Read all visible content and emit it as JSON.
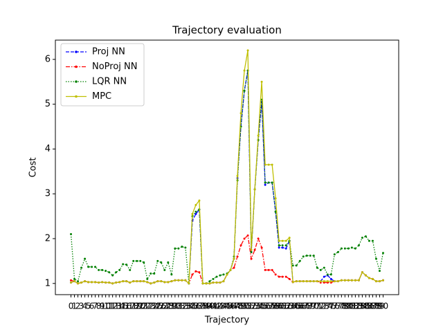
{
  "chart_data": {
    "type": "line",
    "title": "Trajectory evaluation",
    "xlabel": "Trajectory",
    "ylabel": "Cost",
    "x": [
      0,
      1,
      2,
      3,
      4,
      5,
      6,
      7,
      8,
      9,
      10,
      11,
      12,
      13,
      14,
      15,
      16,
      17,
      18,
      19,
      20,
      21,
      22,
      23,
      24,
      25,
      26,
      27,
      28,
      29,
      30,
      31,
      32,
      33,
      34,
      35,
      36,
      37,
      38,
      39,
      40,
      41,
      42,
      43,
      44,
      45,
      46,
      47,
      48,
      49,
      50,
      51,
      52,
      53,
      54,
      55,
      56,
      57,
      58,
      59,
      60,
      61,
      62,
      63,
      64,
      65,
      66,
      67,
      68,
      69,
      70,
      71,
      72,
      73,
      74,
      75,
      76,
      77,
      78,
      79,
      80,
      81,
      82,
      83,
      84,
      85,
      86,
      87,
      88,
      89,
      90
    ],
    "xlim": [
      -4.5,
      94.5
    ],
    "ylim": [
      0.75,
      6.43
    ],
    "xticks": [
      0,
      1,
      2,
      3,
      4,
      5,
      6,
      7,
      8,
      9,
      10,
      11,
      12,
      13,
      14,
      15,
      16,
      17,
      18,
      19,
      20,
      21,
      22,
      23,
      24,
      25,
      26,
      27,
      28,
      29,
      30,
      31,
      32,
      33,
      34,
      35,
      36,
      37,
      38,
      39,
      40,
      41,
      42,
      43,
      44,
      45,
      46,
      47,
      48,
      49,
      50,
      51,
      52,
      53,
      54,
      55,
      56,
      57,
      58,
      59,
      60,
      61,
      62,
      63,
      64,
      65,
      66,
      67,
      68,
      69,
      70,
      71,
      72,
      73,
      74,
      75,
      76,
      77,
      78,
      79,
      80,
      81,
      82,
      83,
      84,
      85,
      86,
      87,
      88,
      89,
      90
    ],
    "yticks": [
      1,
      2,
      3,
      4,
      5,
      6
    ],
    "legend": "upper left",
    "series": [
      {
        "name": "Proj NN",
        "color": "#0000ff",
        "linestyle": "dashed",
        "values": [
          1.02,
          1.05,
          1.0,
          1.02,
          1.05,
          1.03,
          1.03,
          1.03,
          1.02,
          1.03,
          1.02,
          1.02,
          1.0,
          1.02,
          1.03,
          1.05,
          1.05,
          1.02,
          1.05,
          1.05,
          1.05,
          1.05,
          1.03,
          1.0,
          1.02,
          1.05,
          1.05,
          1.03,
          1.03,
          1.05,
          1.07,
          1.07,
          1.07,
          1.07,
          1.0,
          2.4,
          2.55,
          2.65,
          1.0,
          1.0,
          1.0,
          1.02,
          1.02,
          1.02,
          1.05,
          1.2,
          1.3,
          1.55,
          3.35,
          4.5,
          5.3,
          5.75,
          1.7,
          3.1,
          4.2,
          5.05,
          3.2,
          3.25,
          3.25,
          2.6,
          1.8,
          1.8,
          1.78,
          1.95,
          1.03,
          1.05,
          1.05,
          1.05,
          1.05,
          1.05,
          1.05,
          1.05,
          1.05,
          1.15,
          1.18,
          1.1,
          1.05,
          1.05,
          1.07,
          1.07,
          1.07,
          1.07,
          1.07,
          1.07,
          1.25,
          1.18,
          1.12,
          1.1,
          1.05,
          1.05,
          1.07
        ]
      },
      {
        "name": "NoProj NN",
        "color": "#ff0000",
        "linestyle": "dashdot",
        "values": [
          1.07,
          1.05,
          1.0,
          1.02,
          1.05,
          1.03,
          1.03,
          1.03,
          1.02,
          1.03,
          1.02,
          1.02,
          1.0,
          1.02,
          1.03,
          1.05,
          1.05,
          1.02,
          1.05,
          1.05,
          1.05,
          1.05,
          1.03,
          1.0,
          1.02,
          1.05,
          1.05,
          1.03,
          1.03,
          1.05,
          1.07,
          1.07,
          1.07,
          1.07,
          1.0,
          1.2,
          1.27,
          1.25,
          1.0,
          1.0,
          1.0,
          1.02,
          1.02,
          1.02,
          1.05,
          1.2,
          1.3,
          1.35,
          1.6,
          1.85,
          2.0,
          2.07,
          1.55,
          1.75,
          2.0,
          1.8,
          1.3,
          1.3,
          1.3,
          1.2,
          1.15,
          1.15,
          1.15,
          1.1,
          1.03,
          1.05,
          1.05,
          1.05,
          1.05,
          1.05,
          1.05,
          1.05,
          1.02,
          1.02,
          1.02,
          1.02,
          1.05,
          1.05,
          1.07,
          1.07,
          1.07,
          1.07,
          1.07,
          1.07,
          1.25,
          1.18,
          1.12,
          1.1,
          1.05,
          1.05,
          1.07
        ]
      },
      {
        "name": "LQR NN",
        "color": "#008000",
        "linestyle": "dotted",
        "values": [
          2.1,
          1.1,
          1.05,
          1.35,
          1.55,
          1.37,
          1.37,
          1.37,
          1.3,
          1.3,
          1.28,
          1.25,
          1.18,
          1.25,
          1.3,
          1.43,
          1.42,
          1.3,
          1.5,
          1.5,
          1.5,
          1.47,
          1.1,
          1.22,
          1.22,
          1.5,
          1.47,
          1.3,
          1.47,
          1.2,
          1.78,
          1.78,
          1.82,
          1.8,
          1.0,
          2.5,
          2.6,
          2.65,
          1.0,
          1.0,
          1.05,
          1.1,
          1.15,
          1.18,
          1.2,
          1.22,
          1.3,
          1.6,
          3.3,
          4.5,
          5.3,
          5.75,
          1.7,
          3.1,
          4.2,
          5.1,
          3.25,
          3.25,
          3.25,
          2.6,
          1.85,
          1.85,
          1.85,
          1.95,
          1.4,
          1.4,
          1.5,
          1.6,
          1.62,
          1.62,
          1.62,
          1.35,
          1.3,
          1.35,
          1.2,
          1.2,
          1.65,
          1.7,
          1.78,
          1.78,
          1.78,
          1.8,
          1.78,
          1.85,
          2.02,
          2.05,
          1.95,
          1.95,
          1.55,
          1.28,
          1.68
        ]
      },
      {
        "name": "MPC",
        "color": "#bfbf00",
        "linestyle": "solid",
        "values": [
          1.02,
          1.05,
          1.0,
          1.02,
          1.05,
          1.03,
          1.03,
          1.03,
          1.02,
          1.03,
          1.02,
          1.02,
          1.0,
          1.02,
          1.03,
          1.05,
          1.05,
          1.02,
          1.05,
          1.05,
          1.05,
          1.05,
          1.03,
          1.0,
          1.02,
          1.05,
          1.05,
          1.03,
          1.03,
          1.05,
          1.07,
          1.07,
          1.07,
          1.07,
          1.0,
          2.55,
          2.75,
          2.85,
          1.0,
          1.0,
          1.0,
          1.02,
          1.02,
          1.02,
          1.05,
          1.2,
          1.3,
          1.55,
          3.4,
          4.8,
          5.75,
          6.2,
          1.75,
          3.1,
          4.3,
          5.5,
          3.65,
          3.65,
          3.65,
          2.9,
          1.95,
          1.95,
          1.95,
          2.02,
          1.03,
          1.05,
          1.05,
          1.05,
          1.05,
          1.05,
          1.05,
          1.05,
          1.05,
          1.05,
          1.05,
          1.05,
          1.05,
          1.05,
          1.07,
          1.07,
          1.07,
          1.07,
          1.07,
          1.07,
          1.25,
          1.18,
          1.12,
          1.1,
          1.05,
          1.05,
          1.07
        ]
      }
    ]
  }
}
